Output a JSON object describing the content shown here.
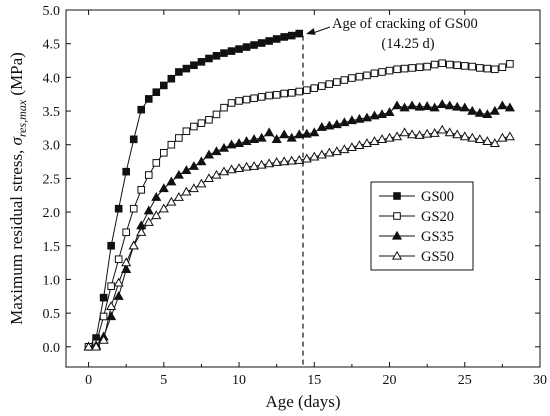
{
  "chart_data": {
    "type": "line",
    "xlabel": "Age (days)",
    "ylabel_prefix": "Maximum residual stress, ",
    "ylabel_symbol": "σ",
    "ylabel_subscript": "res,max",
    "ylabel_unit": " (MPa)",
    "xlim": [
      -1.5,
      30
    ],
    "ylim": [
      -0.3,
      5.0
    ],
    "x_ticks": [
      0,
      5,
      10,
      15,
      20,
      25,
      30
    ],
    "x_tick_labels": [
      "0",
      "5",
      "10",
      "15",
      "20",
      "25",
      "30"
    ],
    "y_ticks": [
      0.0,
      0.5,
      1.0,
      1.5,
      2.0,
      2.5,
      3.0,
      3.5,
      4.0,
      4.5,
      5.0
    ],
    "y_tick_labels": [
      "0.0",
      "0.5",
      "1.0",
      "1.5",
      "2.0",
      "2.5",
      "3.0",
      "3.5",
      "4.0",
      "4.5",
      "5.0"
    ],
    "grid": false,
    "legend_position": "center-right",
    "annotation": {
      "line1": "Age of cracking of GS00",
      "line2": "(14.25 d)",
      "x": 14.25
    },
    "series": [
      {
        "name": "GS00",
        "marker": "square-filled",
        "x": [
          0,
          0.5,
          1.0,
          1.5,
          2.0,
          2.5,
          3.0,
          3.5,
          4.0,
          4.5,
          5.0,
          5.5,
          6.0,
          6.5,
          7.0,
          7.5,
          8.0,
          8.5,
          9.0,
          9.5,
          10.0,
          10.5,
          11.0,
          11.5,
          12.0,
          12.5,
          13.0,
          13.5,
          14.0
        ],
        "y": [
          0.0,
          0.13,
          0.73,
          1.5,
          2.05,
          2.6,
          3.08,
          3.52,
          3.68,
          3.78,
          3.88,
          3.98,
          4.08,
          4.13,
          4.18,
          4.23,
          4.28,
          4.32,
          4.36,
          4.39,
          4.42,
          4.45,
          4.48,
          4.51,
          4.54,
          4.57,
          4.6,
          4.62,
          4.65
        ]
      },
      {
        "name": "GS20",
        "marker": "square-open",
        "x": [
          0,
          0.5,
          1.0,
          1.5,
          2.0,
          2.5,
          3.0,
          3.5,
          4.0,
          4.5,
          5.0,
          5.5,
          6.0,
          6.5,
          7.0,
          7.5,
          8.0,
          8.5,
          9.0,
          9.5,
          10.0,
          10.5,
          11.0,
          11.5,
          12.0,
          12.5,
          13.0,
          13.5,
          14.0,
          14.5,
          15.0,
          15.5,
          16.0,
          16.5,
          17.0,
          17.5,
          18.0,
          18.5,
          19.0,
          19.5,
          20.0,
          20.5,
          21.0,
          21.5,
          22.0,
          22.5,
          23.0,
          23.5,
          24.0,
          24.5,
          25.0,
          25.5,
          26.0,
          26.5,
          27.0,
          27.5,
          28.0
        ],
        "y": [
          0.0,
          0.05,
          0.45,
          0.9,
          1.3,
          1.7,
          2.05,
          2.33,
          2.55,
          2.73,
          2.88,
          3.0,
          3.1,
          3.2,
          3.27,
          3.32,
          3.37,
          3.45,
          3.55,
          3.62,
          3.65,
          3.67,
          3.69,
          3.71,
          3.73,
          3.74,
          3.76,
          3.77,
          3.79,
          3.81,
          3.84,
          3.87,
          3.9,
          3.93,
          3.96,
          3.99,
          4.01,
          4.03,
          4.06,
          4.08,
          4.1,
          4.12,
          4.13,
          4.14,
          4.15,
          4.16,
          4.19,
          4.21,
          4.19,
          4.18,
          4.17,
          4.16,
          4.14,
          4.13,
          4.12,
          4.15,
          4.2
        ]
      },
      {
        "name": "GS35",
        "marker": "triangle-filled",
        "x": [
          0,
          0.5,
          1.0,
          1.5,
          2.0,
          2.5,
          3.0,
          3.5,
          4.0,
          4.5,
          5.0,
          5.5,
          6.0,
          6.5,
          7.0,
          7.5,
          8.0,
          8.5,
          9.0,
          9.5,
          10.0,
          10.5,
          11.0,
          11.5,
          12.0,
          12.5,
          13.0,
          13.5,
          14.0,
          14.5,
          15.0,
          15.5,
          16.0,
          16.5,
          17.0,
          17.5,
          18.0,
          18.5,
          19.0,
          19.5,
          20.0,
          20.5,
          21.0,
          21.5,
          22.0,
          22.5,
          23.0,
          23.5,
          24.0,
          24.5,
          25.0,
          25.5,
          26.0,
          26.5,
          27.0,
          27.5,
          28.0
        ],
        "y": [
          0.0,
          0.02,
          0.15,
          0.45,
          0.75,
          1.15,
          1.5,
          1.8,
          2.02,
          2.22,
          2.35,
          2.45,
          2.55,
          2.62,
          2.68,
          2.75,
          2.85,
          2.9,
          2.95,
          3.0,
          3.02,
          3.05,
          3.08,
          3.1,
          3.18,
          3.08,
          3.15,
          3.1,
          3.15,
          3.16,
          3.18,
          3.26,
          3.28,
          3.3,
          3.33,
          3.36,
          3.38,
          3.4,
          3.43,
          3.45,
          3.48,
          3.58,
          3.55,
          3.58,
          3.56,
          3.57,
          3.55,
          3.6,
          3.58,
          3.56,
          3.55,
          3.5,
          3.47,
          3.45,
          3.5,
          3.58,
          3.55
        ]
      },
      {
        "name": "GS50",
        "marker": "triangle-open",
        "x": [
          0,
          0.5,
          1.0,
          1.5,
          2.0,
          2.5,
          3.0,
          3.5,
          4.0,
          4.5,
          5.0,
          5.5,
          6.0,
          6.5,
          7.0,
          7.5,
          8.0,
          8.5,
          9.0,
          9.5,
          10.0,
          10.5,
          11.0,
          11.5,
          12.0,
          12.5,
          13.0,
          13.5,
          14.0,
          14.5,
          15.0,
          15.5,
          16.0,
          16.5,
          17.0,
          17.5,
          18.0,
          18.5,
          19.0,
          19.5,
          20.0,
          20.5,
          21.0,
          21.5,
          22.0,
          22.5,
          23.0,
          23.5,
          24.0,
          24.5,
          25.0,
          25.5,
          26.0,
          26.5,
          27.0,
          27.5,
          28.0
        ],
        "y": [
          0.0,
          0.0,
          0.1,
          0.6,
          0.95,
          1.25,
          1.5,
          1.7,
          1.85,
          1.95,
          2.05,
          2.15,
          2.22,
          2.3,
          2.35,
          2.42,
          2.5,
          2.55,
          2.6,
          2.63,
          2.65,
          2.67,
          2.68,
          2.7,
          2.72,
          2.74,
          2.75,
          2.76,
          2.77,
          2.79,
          2.82,
          2.85,
          2.88,
          2.9,
          2.93,
          2.96,
          2.99,
          3.02,
          3.05,
          3.08,
          3.1,
          3.12,
          3.18,
          3.15,
          3.14,
          3.16,
          3.17,
          3.22,
          3.18,
          3.15,
          3.12,
          3.1,
          3.08,
          3.05,
          3.02,
          3.1,
          3.12
        ]
      }
    ]
  }
}
